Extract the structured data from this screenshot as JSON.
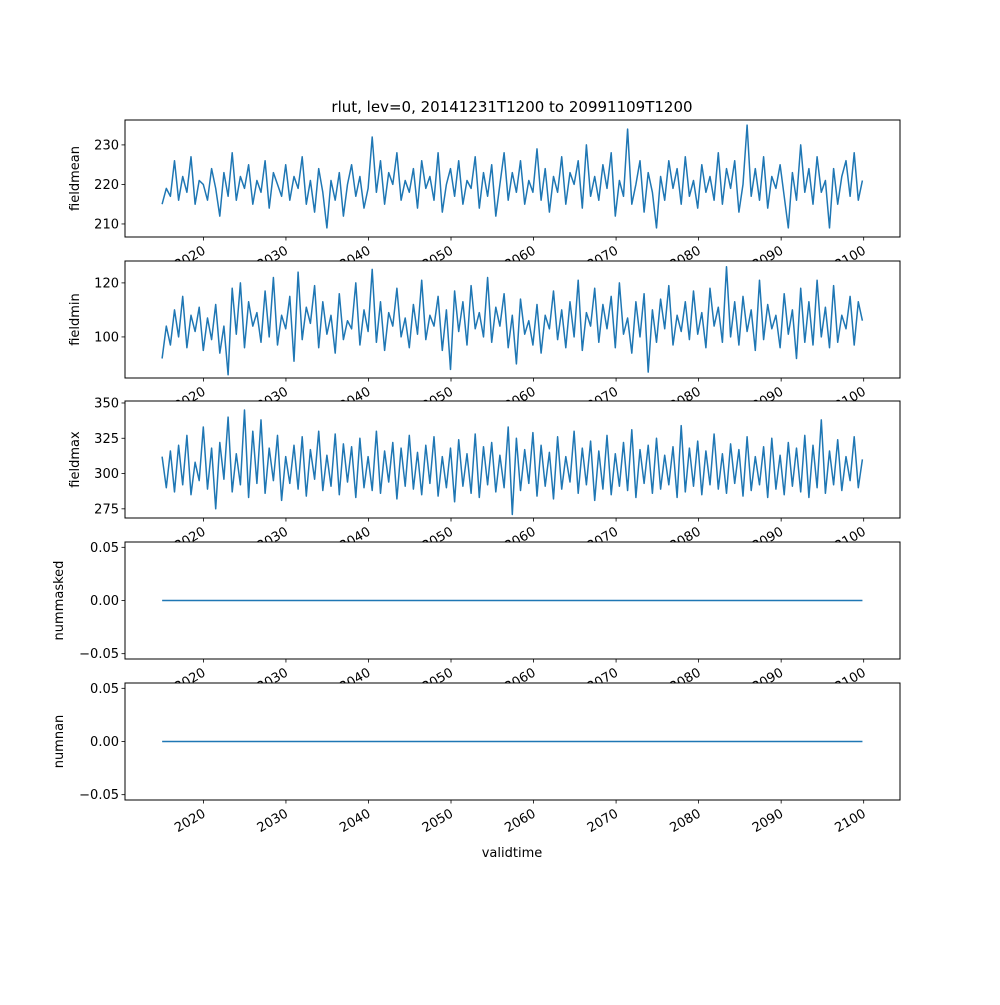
{
  "chart_data": {
    "type": "line",
    "title": "rlut, lev=0, 20141231T1200 to 20991109T1200",
    "xlabel": "validtime",
    "x_start": 2015.0,
    "x_end": 2099.85,
    "x_ticks": [
      2020,
      2030,
      2040,
      2050,
      2060,
      2070,
      2080,
      2090,
      2100
    ],
    "x_tick_labels": [
      "2020",
      "2030",
      "2040",
      "2050",
      "2060",
      "2070",
      "2080",
      "2090",
      "2100"
    ],
    "xlim": [
      2010.5,
      2104.4
    ],
    "line_color": "#1f77b4",
    "panels": [
      {
        "ylabel": "fieldmean",
        "ylim": [
          206.7,
          236.3
        ],
        "y_ticks": [
          210,
          220,
          230
        ],
        "y_tick_labels": [
          "210",
          "220",
          "230"
        ],
        "values": [
          215,
          219,
          217,
          226,
          216,
          222,
          218,
          227,
          215,
          221,
          220,
          216,
          224,
          219,
          212,
          223,
          217,
          228,
          216,
          222,
          219,
          225,
          215,
          221,
          218,
          226,
          214,
          223,
          220,
          217,
          225,
          216,
          222,
          219,
          227,
          215,
          221,
          213,
          224,
          218,
          209,
          221,
          216,
          223,
          212,
          220,
          225,
          217,
          222,
          214,
          219,
          232,
          218,
          226,
          215,
          223,
          220,
          228,
          216,
          221,
          218,
          224,
          214,
          226,
          219,
          222,
          216,
          228,
          213,
          220,
          224,
          217,
          226,
          215,
          221,
          219,
          227,
          214,
          223,
          217,
          225,
          212,
          220,
          228,
          216,
          223,
          218,
          226,
          215,
          221,
          218,
          229,
          216,
          224,
          213,
          222,
          218,
          227,
          215,
          223,
          220,
          226,
          214,
          230,
          217,
          222,
          216,
          225,
          219,
          228,
          212,
          221,
          217,
          234,
          215,
          220,
          226,
          213,
          223,
          218,
          209,
          222,
          216,
          226,
          219,
          224,
          215,
          227,
          217,
          221,
          214,
          225,
          218,
          222,
          216,
          228,
          215,
          224,
          219,
          226,
          213,
          220,
          235,
          217,
          224,
          216,
          227,
          214,
          222,
          219,
          225,
          217,
          209,
          223,
          216,
          230,
          218,
          224,
          215,
          227,
          218,
          221,
          209,
          224,
          215,
          222,
          226,
          217,
          228,
          216,
          221
        ]
      },
      {
        "ylabel": "fieldmin",
        "ylim": [
          84.8,
          128.1
        ],
        "y_ticks": [
          100,
          120
        ],
        "y_tick_labels": [
          "100",
          "120"
        ],
        "values": [
          92,
          104,
          97,
          110,
          100,
          115,
          96,
          108,
          102,
          111,
          95,
          107,
          99,
          112,
          94,
          104,
          86,
          118,
          101,
          120,
          96,
          113,
          104,
          109,
          98,
          117,
          100,
          122,
          97,
          108,
          103,
          115,
          91,
          124,
          99,
          111,
          105,
          119,
          96,
          113,
          101,
          108,
          94,
          116,
          99,
          106,
          103,
          120,
          97,
          110,
          102,
          125,
          98,
          113,
          95,
          109,
          104,
          118,
          100,
          107,
          96,
          112,
          101,
          121,
          99,
          108,
          104,
          115,
          95,
          110,
          88,
          117,
          102,
          113,
          97,
          119,
          103,
          109,
          100,
          122,
          98,
          111,
          104,
          116,
          96,
          108,
          90,
          114,
          101,
          106,
          97,
          112,
          94,
          108,
          103,
          117,
          99,
          110,
          96,
          113,
          100,
          121,
          95,
          109,
          104,
          118,
          98,
          112,
          103,
          115,
          96,
          120,
          101,
          107,
          94,
          113,
          100,
          116,
          87,
          110,
          98,
          114,
          103,
          119,
          97,
          108,
          102,
          113,
          99,
          117,
          101,
          109,
          96,
          118,
          104,
          111,
          98,
          126,
          100,
          113,
          97,
          115,
          102,
          110,
          95,
          121,
          99,
          112,
          103,
          108,
          96,
          116,
          101,
          110,
          92,
          118,
          98,
          113,
          97,
          121,
          100,
          111,
          96,
          119,
          98,
          108,
          103,
          115,
          97,
          113,
          106
        ]
      },
      {
        "ylabel": "fieldmax",
        "ylim": [
          268.5,
          351.4
        ],
        "y_ticks": [
          275,
          300,
          325,
          350
        ],
        "y_tick_labels": [
          "275",
          "300",
          "325",
          "350"
        ],
        "values": [
          312,
          290,
          316,
          287,
          320,
          292,
          327,
          285,
          308,
          295,
          333,
          289,
          318,
          275,
          322,
          296,
          340,
          287,
          314,
          292,
          345,
          283,
          330,
          293,
          338,
          286,
          318,
          295,
          327,
          281,
          312,
          293,
          320,
          289,
          326,
          284,
          317,
          296,
          330,
          288,
          313,
          291,
          328,
          285,
          321,
          294,
          319,
          283,
          325,
          290,
          312,
          288,
          330,
          286,
          316,
          294,
          322,
          282,
          318,
          291,
          327,
          289,
          315,
          285,
          320,
          293,
          326,
          284,
          312,
          290,
          318,
          280,
          324,
          291,
          314,
          286,
          328,
          283,
          319,
          292,
          322,
          287,
          313,
          290,
          333,
          271,
          325,
          288,
          317,
          293,
          329,
          284,
          320,
          291,
          315,
          282,
          326,
          289,
          312,
          294,
          330,
          286,
          318,
          292,
          323,
          281,
          316,
          289,
          327,
          285,
          314,
          291,
          322,
          288,
          331,
          283,
          317,
          293,
          320,
          286,
          325,
          289,
          313,
          292,
          319,
          283,
          334,
          287,
          318,
          291,
          323,
          285,
          316,
          292,
          328,
          289,
          314,
          286,
          321,
          293,
          317,
          284,
          326,
          288,
          312,
          292,
          319,
          283,
          325,
          289,
          313,
          285,
          322,
          291,
          318,
          287,
          327,
          283,
          320,
          290,
          338,
          286,
          316,
          292,
          324,
          288,
          312,
          295,
          326,
          290,
          310
        ]
      },
      {
        "ylabel": "nummasked",
        "ylim": [
          -0.055,
          0.055
        ],
        "y_ticks": [
          -0.05,
          0.0,
          0.05
        ],
        "y_tick_labels": [
          "−0.05",
          "0.00",
          "0.05"
        ],
        "constant_value": 0.0
      },
      {
        "ylabel": "numnan",
        "ylim": [
          -0.055,
          0.055
        ],
        "y_ticks": [
          -0.05,
          0.0,
          0.05
        ],
        "y_tick_labels": [
          "−0.05",
          "0.00",
          "0.05"
        ],
        "constant_value": 0.0
      }
    ]
  }
}
